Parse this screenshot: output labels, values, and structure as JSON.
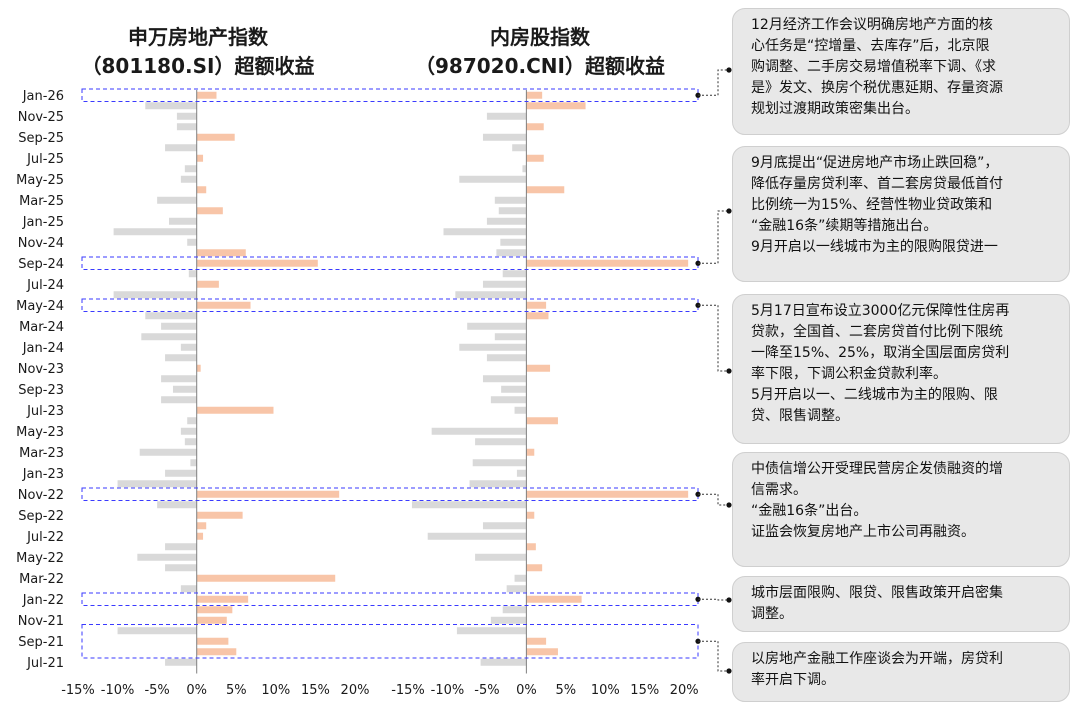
{
  "charts": {
    "left_title_line1": "申万房地产指数",
    "left_title_line2": "（801180.SI）超额收益",
    "right_title_line1": "内房股指数",
    "right_title_line2": "（987020.CNI）超额收益"
  },
  "notes": [
    [
      "12月经济工作会议明确房地产方面的核",
      "心任务是“控增量、去库存”后，北京限",
      "购调整、二手房交易增值税率下调、《求",
      "是》发文、换房个税优惠延期、存量资源",
      "规划过渡期政策密集出台。"
    ],
    [
      "9月底提出“促进房地产市场止跌回稳”，",
      "降低存量房贷利率、首二套房贷最低首付",
      "比例统一为15%、经营性物业贷政策和",
      "“金融16条”续期等措施出台。",
      "9月开启以一线城市为主的限购限贷进一"
    ],
    [
      "5月17日宣布设立3000亿元保障性住房再",
      "贷款，全国首、二套房贷首付比例下限统",
      "一降至15%、25%，取消全国层面房贷利",
      "率下限，下调公积金贷款利率。",
      "5月开启以一、二线城市为主的限购、限",
      "贷、限售调整。"
    ],
    [
      "中债信增公开受理民营房企发债融资的增",
      "信需求。",
      "“金融16条”出台。",
      "证监会恢复房地产上市公司再融资。"
    ],
    [
      "城市层面限购、限贷、限售政策开启密集",
      "调整。"
    ],
    [
      "以房地产金融工作座谈会为开端，房贷利",
      "率开启下调。"
    ]
  ],
  "chart_data": [
    {
      "type": "bar",
      "orientation": "horizontal",
      "title": "申万房地产指数（801180.SI）超额收益",
      "xlim": [
        -15,
        20
      ],
      "xticks": [
        "-15%",
        "-10%",
        "-5%",
        "0%",
        "5%",
        "10%",
        "15%",
        "20%"
      ],
      "ytick_labels": [
        "Jan-26",
        "Nov-25",
        "Sep-25",
        "Jul-25",
        "May-25",
        "Mar-25",
        "Jan-25",
        "Nov-24",
        "Sep-24",
        "Jul-24",
        "May-24",
        "Mar-24",
        "Jan-24",
        "Nov-23",
        "Sep-23",
        "Jul-23",
        "May-23",
        "Mar-23",
        "Jan-23",
        "Nov-22",
        "Sep-22",
        "Jul-22",
        "May-22",
        "Mar-22",
        "Jan-22",
        "Nov-21",
        "Sep-21",
        "Jul-21"
      ],
      "colors": {
        "positive": "#f8c5a8",
        "negative": "#d9d9d9"
      },
      "categories": [
        "Jan-26",
        "Dec-25",
        "Nov-25",
        "Oct-25",
        "Sep-25",
        "Aug-25",
        "Jul-25",
        "Jun-25",
        "May-25",
        "Apr-25",
        "Mar-25",
        "Feb-25",
        "Jan-25",
        "Dec-24",
        "Nov-24",
        "Oct-24",
        "Sep-24",
        "Aug-24",
        "Jul-24",
        "Jun-24",
        "May-24",
        "Apr-24",
        "Mar-24",
        "Feb-24",
        "Jan-24",
        "Dec-23",
        "Nov-23",
        "Oct-23",
        "Sep-23",
        "Aug-23",
        "Jul-23",
        "Jun-23",
        "May-23",
        "Apr-23",
        "Mar-23",
        "Feb-23",
        "Jan-23",
        "Dec-22",
        "Nov-22",
        "Oct-22",
        "Sep-22",
        "Aug-22",
        "Jul-22",
        "Jun-22",
        "May-22",
        "Apr-22",
        "Mar-22",
        "Feb-22",
        "Jan-22",
        "Dec-21",
        "Nov-21",
        "Oct-21",
        "Sep-21",
        "Aug-21",
        "Jul-21"
      ],
      "values": [
        2.5,
        -6.5,
        -2.5,
        -2.5,
        4.8,
        -4,
        0.8,
        -1.5,
        -2,
        1.2,
        -5,
        3.3,
        -3.5,
        -10.5,
        -1.2,
        6.2,
        15.3,
        -1,
        2.8,
        -10.5,
        6.8,
        -6.5,
        -4.5,
        -7,
        -2,
        -4,
        0.5,
        -4.5,
        -3,
        -4.5,
        9.7,
        -1.2,
        -2,
        -1.5,
        -7.2,
        -0.8,
        -4,
        -10,
        18,
        -5,
        5.8,
        1.2,
        0.8,
        -4,
        -7.5,
        -4,
        17.5,
        -2,
        6.5,
        4.5,
        3.8,
        -10,
        4,
        5,
        -4
      ]
    },
    {
      "type": "bar",
      "orientation": "horizontal",
      "title": "内房股指数（987020.CNI）超额收益",
      "xlim": [
        -15,
        22
      ],
      "xticks": [
        "-15%",
        "-10%",
        "-5%",
        "0%",
        "5%",
        "10%",
        "15%",
        "20%"
      ],
      "ytick_labels": [],
      "colors": {
        "positive": "#f8c5a8",
        "negative": "#d9d9d9"
      },
      "categories": [
        "Jan-26",
        "Dec-25",
        "Nov-25",
        "Oct-25",
        "Sep-25",
        "Aug-25",
        "Jul-25",
        "Jun-25",
        "May-25",
        "Apr-25",
        "Mar-25",
        "Feb-25",
        "Jan-25",
        "Dec-24",
        "Nov-24",
        "Oct-24",
        "Sep-24",
        "Aug-24",
        "Jul-24",
        "Jun-24",
        "May-24",
        "Apr-24",
        "Mar-24",
        "Feb-24",
        "Jan-24",
        "Dec-23",
        "Nov-23",
        "Oct-23",
        "Sep-23",
        "Aug-23",
        "Jul-23",
        "Jun-23",
        "May-23",
        "Apr-23",
        "Mar-23",
        "Feb-23",
        "Jan-23",
        "Dec-22",
        "Nov-22",
        "Oct-22",
        "Sep-22",
        "Aug-22",
        "Jul-22",
        "Jun-22",
        "May-22",
        "Apr-22",
        "Mar-22",
        "Feb-22",
        "Jan-22",
        "Dec-21",
        "Nov-21",
        "Oct-21",
        "Sep-21",
        "Aug-21",
        "Jul-21"
      ],
      "values": [
        2,
        7.5,
        -5,
        2.2,
        -5.5,
        -1.8,
        2.2,
        -0.5,
        -8.5,
        4.8,
        -4,
        -3.5,
        -5,
        -10.5,
        -3.3,
        -3.8,
        20.5,
        -3,
        -5.5,
        -9,
        2.5,
        2.8,
        -7.5,
        -4,
        -8.5,
        -5,
        3,
        -5.5,
        -3.2,
        -4.5,
        -1.5,
        4,
        -12,
        -6.5,
        1,
        -6.8,
        -1.2,
        -7.2,
        20.5,
        -14.5,
        1,
        -5.5,
        -12.5,
        1.2,
        -6.5,
        2,
        -1.5,
        -2.5,
        7,
        -3,
        -4.5,
        -8.8,
        2.5,
        4,
        -5.8
      ]
    }
  ]
}
